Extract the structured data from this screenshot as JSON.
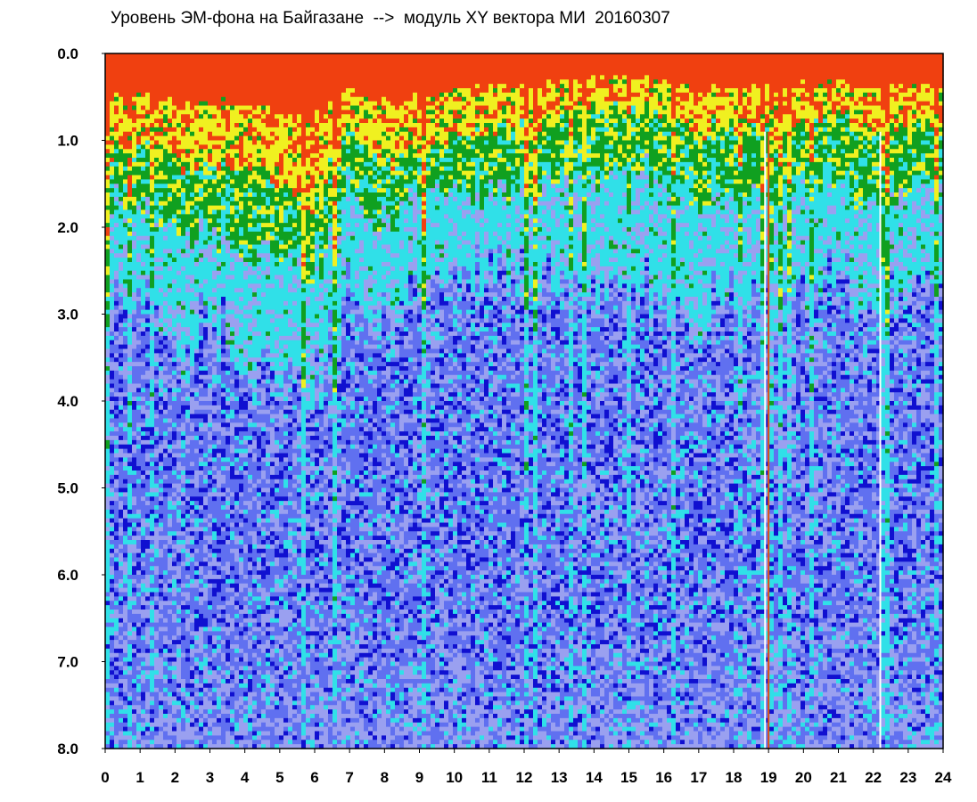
{
  "title": "Уровень ЭМ-фона на Байгазане  -->  модуль XY вектора МИ  20160307",
  "chart_data": {
    "type": "heatmap",
    "title": "Уровень ЭМ-фона на Байгазане  -->  модуль XY вектора МИ  20160307",
    "xlabel": "",
    "ylabel": "",
    "xlim": [
      0,
      24
    ],
    "ylim": [
      0,
      8
    ],
    "y_inverted": true,
    "x_ticks": [
      "0",
      "1",
      "2",
      "3",
      "4",
      "5",
      "6",
      "7",
      "8",
      "9",
      "10",
      "11",
      "12",
      "13",
      "14",
      "15",
      "16",
      "17",
      "18",
      "19",
      "20",
      "21",
      "22",
      "23",
      "24"
    ],
    "y_ticks": [
      "0.0",
      "1.0",
      "2.0",
      "3.0",
      "4.0",
      "5.0",
      "6.0",
      "7.0",
      "8.0"
    ],
    "colormap": [
      "#1010d0",
      "#6070f0",
      "#9aa0f0",
      "#30e0e8",
      "#10a020",
      "#f0f020",
      "#f04010"
    ],
    "grid": false,
    "hot_layer_depth_by_hour": {
      "hour": [
        0,
        1,
        2,
        3,
        4,
        5,
        6,
        7,
        8,
        9,
        10,
        11,
        12,
        13,
        14,
        15,
        16,
        17,
        18,
        19,
        20,
        21,
        22,
        23,
        24
      ],
      "yellow_bottom": [
        1.1,
        1.0,
        1.2,
        1.3,
        1.2,
        1.5,
        1.8,
        0.9,
        1.3,
        1.1,
        0.9,
        0.9,
        0.9,
        0.7,
        0.6,
        0.6,
        0.7,
        0.9,
        0.8,
        0.9,
        0.8,
        0.7,
        0.9,
        0.8,
        0.8
      ],
      "green_bottom": [
        1.6,
        1.7,
        2.0,
        2.0,
        2.1,
        2.3,
        2.6,
        1.6,
        2.0,
        1.5,
        1.5,
        1.6,
        1.6,
        1.4,
        1.4,
        1.3,
        1.4,
        1.6,
        1.5,
        1.6,
        1.5,
        1.5,
        1.7,
        1.5,
        1.4
      ],
      "cyan_bottom": [
        2.8,
        2.6,
        3.4,
        3.0,
        3.4,
        3.6,
        4.0,
        2.8,
        3.2,
        2.6,
        2.4,
        2.5,
        2.6,
        2.6,
        2.7,
        2.6,
        2.8,
        3.0,
        2.6,
        2.8,
        2.7,
        2.6,
        2.9,
        2.7,
        2.5
      ]
    },
    "special_lines": [
      {
        "x": 19.0,
        "color": "#e05010"
      },
      {
        "x": 22.2,
        "color": "#ffffff"
      },
      {
        "x": 18.9,
        "color": "#ffffff"
      }
    ]
  }
}
